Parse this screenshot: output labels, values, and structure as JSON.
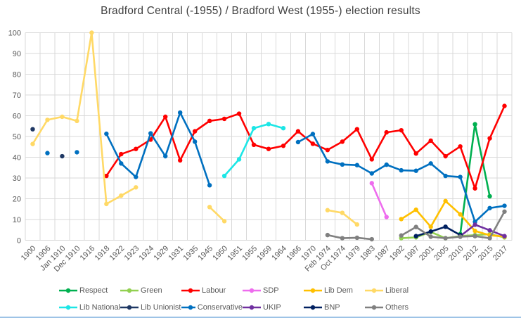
{
  "window": {
    "bottom_bar_color": "#9DC3E6"
  },
  "chart_data": {
    "type": "line",
    "title": "Bradford Central (-1955) / Bradford West (1955-) election results",
    "xlabel": "",
    "ylabel": "",
    "ylim": [
      0,
      100
    ],
    "y_step": 10,
    "grid": true,
    "legend_position": "bottom",
    "axis_text_color": "#595959",
    "grid_color": "#D9D9D9",
    "categories": [
      "1900",
      "1906",
      "Jan 1910",
      "Dec 1910",
      "1916",
      "1918",
      "1922",
      "1923",
      "1924",
      "1929",
      "1931",
      "1935",
      "1945",
      "1950",
      "1951",
      "1955",
      "1959",
      "1964",
      "1966",
      "1970",
      "Feb 1974",
      "Oct 1974",
      "1979",
      "1983",
      "1987",
      "1992",
      "1997",
      "2001",
      "2005",
      "2010",
      "2012",
      "2015",
      "2017"
    ],
    "series": [
      {
        "name": "Respect",
        "color": "#00B050",
        "values": [
          null,
          null,
          null,
          null,
          null,
          null,
          null,
          null,
          null,
          null,
          null,
          null,
          null,
          null,
          null,
          null,
          null,
          null,
          null,
          null,
          null,
          null,
          null,
          null,
          null,
          null,
          null,
          null,
          null,
          3,
          55.9,
          21.2,
          null
        ]
      },
      {
        "name": "Green",
        "color": "#92D050",
        "values": [
          null,
          null,
          null,
          null,
          null,
          null,
          null,
          null,
          null,
          null,
          null,
          null,
          null,
          null,
          null,
          null,
          null,
          null,
          null,
          null,
          null,
          null,
          null,
          null,
          null,
          1,
          1.4,
          4,
          1,
          2,
          2.5,
          2.9,
          1.4
        ]
      },
      {
        "name": "Labour",
        "color": "#FF0000",
        "values": [
          null,
          null,
          null,
          null,
          null,
          31,
          41.5,
          44,
          48.5,
          59.5,
          38.5,
          52.5,
          57.5,
          58.5,
          61,
          46,
          44,
          45.5,
          52.5,
          46.5,
          43.5,
          47.5,
          53.5,
          39,
          52,
          53,
          41.8,
          48,
          40.5,
          45.2,
          25,
          49.1,
          64.7
        ]
      },
      {
        "name": "SDP",
        "color": "#EE6CEE",
        "values": [
          null,
          null,
          null,
          null,
          null,
          null,
          null,
          null,
          null,
          null,
          null,
          null,
          null,
          null,
          null,
          null,
          null,
          null,
          null,
          null,
          null,
          null,
          null,
          27.5,
          11.2,
          null,
          null,
          null,
          null,
          null,
          null,
          null,
          null
        ]
      },
      {
        "name": "Lib Dem",
        "color": "#FFC000",
        "values": [
          null,
          null,
          null,
          null,
          null,
          null,
          null,
          null,
          null,
          null,
          null,
          null,
          null,
          null,
          null,
          null,
          null,
          null,
          null,
          null,
          null,
          null,
          null,
          null,
          null,
          10.2,
          14.7,
          6.5,
          18.9,
          12.5,
          4.5,
          2.4,
          1.8
        ]
      },
      {
        "name": "Liberal",
        "color": "#FFD966",
        "values": [
          46.4,
          58,
          59.5,
          57.5,
          100,
          17.5,
          21.5,
          25.5,
          null,
          null,
          null,
          null,
          16,
          9.2,
          null,
          null,
          null,
          null,
          null,
          null,
          14.5,
          13.2,
          7.6,
          null,
          null,
          null,
          null,
          null,
          null,
          null,
          null,
          null,
          null
        ]
      },
      {
        "name": "Lib National",
        "color": "#1CE6E6",
        "values": [
          null,
          null,
          null,
          null,
          null,
          null,
          null,
          null,
          null,
          null,
          null,
          null,
          null,
          31,
          39,
          54,
          56,
          54,
          null,
          null,
          null,
          null,
          null,
          null,
          null,
          null,
          null,
          null,
          null,
          null,
          null,
          null,
          null
        ]
      },
      {
        "name": "Lib Unionist",
        "color": "#1F3864",
        "values": [
          53.5,
          null,
          40.5,
          null,
          null,
          null,
          null,
          null,
          null,
          null,
          null,
          null,
          null,
          null,
          null,
          null,
          null,
          null,
          null,
          null,
          null,
          null,
          null,
          null,
          null,
          null,
          null,
          null,
          null,
          null,
          null,
          null,
          null
        ]
      },
      {
        "name": "Conservative",
        "color": "#0070C0",
        "values": [
          null,
          42,
          null,
          42.4,
          null,
          51.3,
          37,
          30.5,
          51.5,
          40.5,
          61.5,
          47.5,
          26.5,
          null,
          null,
          null,
          null,
          null,
          47.3,
          51.2,
          38,
          36.5,
          36.2,
          32.2,
          36.4,
          33.7,
          33.5,
          37,
          31,
          30.5,
          8.9,
          15.5,
          16.6
        ]
      },
      {
        "name": "UKIP",
        "color": "#7030A0",
        "values": [
          null,
          null,
          null,
          null,
          null,
          null,
          null,
          null,
          null,
          null,
          null,
          null,
          null,
          null,
          null,
          null,
          null,
          null,
          null,
          null,
          null,
          null,
          null,
          null,
          null,
          null,
          null,
          null,
          null,
          2,
          7.5,
          4.8,
          2
        ]
      },
      {
        "name": "BNP",
        "color": "#002060",
        "values": [
          null,
          null,
          null,
          null,
          null,
          null,
          null,
          null,
          null,
          null,
          null,
          null,
          null,
          null,
          null,
          null,
          null,
          null,
          null,
          null,
          null,
          null,
          null,
          null,
          null,
          null,
          2,
          4.2,
          6.5,
          2.5,
          null,
          null,
          null
        ]
      },
      {
        "name": "Others",
        "color": "#808080",
        "values": [
          null,
          null,
          null,
          null,
          null,
          null,
          null,
          null,
          null,
          null,
          null,
          null,
          null,
          null,
          null,
          null,
          null,
          null,
          null,
          null,
          2.5,
          1,
          1.2,
          0.5,
          null,
          2.3,
          6.4,
          1.7,
          1,
          1.7,
          2,
          1,
          13.8
        ]
      }
    ]
  }
}
